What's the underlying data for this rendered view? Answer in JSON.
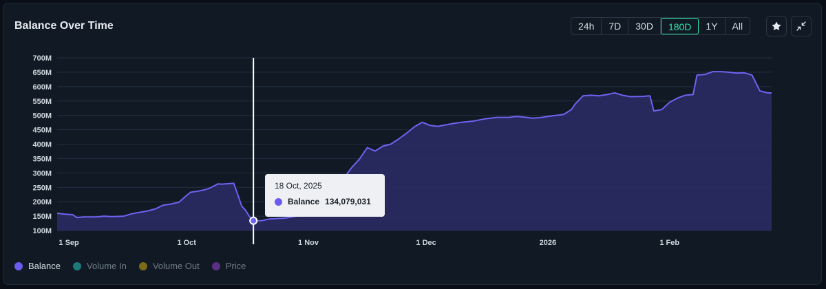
{
  "header": {
    "title": "Balance Over Time"
  },
  "ranges": [
    {
      "label": "24h",
      "active": false
    },
    {
      "label": "7D",
      "active": false
    },
    {
      "label": "30D",
      "active": false
    },
    {
      "label": "180D",
      "active": true
    },
    {
      "label": "1Y",
      "active": false
    },
    {
      "label": "All",
      "active": false
    }
  ],
  "icons": {
    "favorite": "star-icon",
    "collapse": "collapse-icon"
  },
  "tooltip": {
    "date": "18 Oct, 2025",
    "series": "Balance",
    "value": "134,079,031"
  },
  "legend": [
    {
      "label": "Balance",
      "color": "#6a5cf0"
    },
    {
      "label": "Volume In",
      "color": "#1b7a78"
    },
    {
      "label": "Volume Out",
      "color": "#7a6a1a"
    },
    {
      "label": "Price",
      "color": "#5b2f86"
    }
  ],
  "colors": {
    "line": "#6e63f2",
    "fill": "#2b2b66",
    "grid": "#233043",
    "cursor": "#ffffff"
  },
  "chart_data": {
    "type": "area",
    "title": "Balance Over Time",
    "x_ticks": [
      {
        "label": "1 Sep",
        "date": "2025-09-01"
      },
      {
        "label": "1 Oct",
        "date": "2025-10-01"
      },
      {
        "label": "1 Nov",
        "date": "2025-11-01"
      },
      {
        "label": "1 Dec",
        "date": "2025-12-01"
      },
      {
        "label": "2026",
        "date": "2026-01-01"
      },
      {
        "label": "1 Feb",
        "date": "2026-02-01"
      }
    ],
    "y_ticks": [
      "100M",
      "150M",
      "200M",
      "250M",
      "300M",
      "350M",
      "400M",
      "450M",
      "500M",
      "550M",
      "600M",
      "650M",
      "700M"
    ],
    "ylim": [
      100,
      700
    ],
    "y_unit": "M",
    "xlim": [
      "2025-08-29",
      "2026-02-27"
    ],
    "grid": true,
    "legend_position": "bottom-left",
    "highlight": {
      "date": "2025-10-18",
      "value": 134.08
    },
    "series": [
      {
        "name": "Balance",
        "points": [
          [
            "2025-08-29",
            160
          ],
          [
            "2025-08-31",
            157
          ],
          [
            "2025-09-02",
            155
          ],
          [
            "2025-09-03",
            145
          ],
          [
            "2025-09-05",
            147
          ],
          [
            "2025-09-08",
            147
          ],
          [
            "2025-09-10",
            150
          ],
          [
            "2025-09-12",
            148
          ],
          [
            "2025-09-15",
            150
          ],
          [
            "2025-09-17",
            158
          ],
          [
            "2025-09-19",
            163
          ],
          [
            "2025-09-21",
            168
          ],
          [
            "2025-09-23",
            175
          ],
          [
            "2025-09-25",
            188
          ],
          [
            "2025-09-27",
            192
          ],
          [
            "2025-09-29",
            198
          ],
          [
            "2025-10-01",
            222
          ],
          [
            "2025-10-02",
            233
          ],
          [
            "2025-10-04",
            237
          ],
          [
            "2025-10-06",
            243
          ],
          [
            "2025-10-07",
            248
          ],
          [
            "2025-10-09",
            262
          ],
          [
            "2025-10-10",
            261
          ],
          [
            "2025-10-12",
            263
          ],
          [
            "2025-10-13",
            264
          ],
          [
            "2025-10-14",
            225
          ],
          [
            "2025-10-15",
            185
          ],
          [
            "2025-10-16",
            170
          ],
          [
            "2025-10-17",
            148
          ],
          [
            "2025-10-18",
            134.08
          ],
          [
            "2025-10-20",
            134
          ],
          [
            "2025-10-22",
            140
          ],
          [
            "2025-10-26",
            143
          ],
          [
            "2025-10-29",
            150
          ],
          [
            "2025-11-03",
            200
          ],
          [
            "2025-11-09",
            262
          ],
          [
            "2025-11-12",
            318
          ],
          [
            "2025-11-14",
            348
          ],
          [
            "2025-11-16",
            388
          ],
          [
            "2025-11-18",
            376
          ],
          [
            "2025-11-20",
            393
          ],
          [
            "2025-11-22",
            400
          ],
          [
            "2025-11-24",
            418
          ],
          [
            "2025-11-26",
            438
          ],
          [
            "2025-11-28",
            460
          ],
          [
            "2025-11-30",
            476
          ],
          [
            "2025-12-02",
            465
          ],
          [
            "2025-12-04",
            462
          ],
          [
            "2025-12-06",
            467
          ],
          [
            "2025-12-08",
            472
          ],
          [
            "2025-12-10",
            476
          ],
          [
            "2025-12-13",
            480
          ],
          [
            "2025-12-16",
            488
          ],
          [
            "2025-12-19",
            493
          ],
          [
            "2025-12-22",
            493
          ],
          [
            "2025-12-24",
            496
          ],
          [
            "2025-12-26",
            494
          ],
          [
            "2025-12-28",
            490
          ],
          [
            "2025-12-30",
            492
          ],
          [
            "2026-01-01",
            496
          ],
          [
            "2026-01-03",
            500
          ],
          [
            "2026-01-05",
            503
          ],
          [
            "2026-01-07",
            520
          ],
          [
            "2026-01-08",
            540
          ],
          [
            "2026-01-10",
            568
          ],
          [
            "2026-01-12",
            570
          ],
          [
            "2026-01-14",
            568
          ],
          [
            "2026-01-16",
            572
          ],
          [
            "2026-01-18",
            578
          ],
          [
            "2026-01-20",
            570
          ],
          [
            "2026-01-22",
            565
          ],
          [
            "2026-01-25",
            566
          ],
          [
            "2026-01-27",
            568
          ],
          [
            "2026-01-28",
            515
          ],
          [
            "2026-01-30",
            520
          ],
          [
            "2026-02-01",
            545
          ],
          [
            "2026-02-03",
            560
          ],
          [
            "2026-02-05",
            570
          ],
          [
            "2026-02-07",
            572
          ],
          [
            "2026-02-08",
            640
          ],
          [
            "2026-02-10",
            642
          ],
          [
            "2026-02-12",
            652
          ],
          [
            "2026-02-14",
            652
          ],
          [
            "2026-02-16",
            650
          ],
          [
            "2026-02-18",
            647
          ],
          [
            "2026-02-20",
            648
          ],
          [
            "2026-02-22",
            640
          ],
          [
            "2026-02-24",
            585
          ],
          [
            "2026-02-26",
            578
          ],
          [
            "2026-02-27",
            578
          ]
        ]
      }
    ]
  }
}
